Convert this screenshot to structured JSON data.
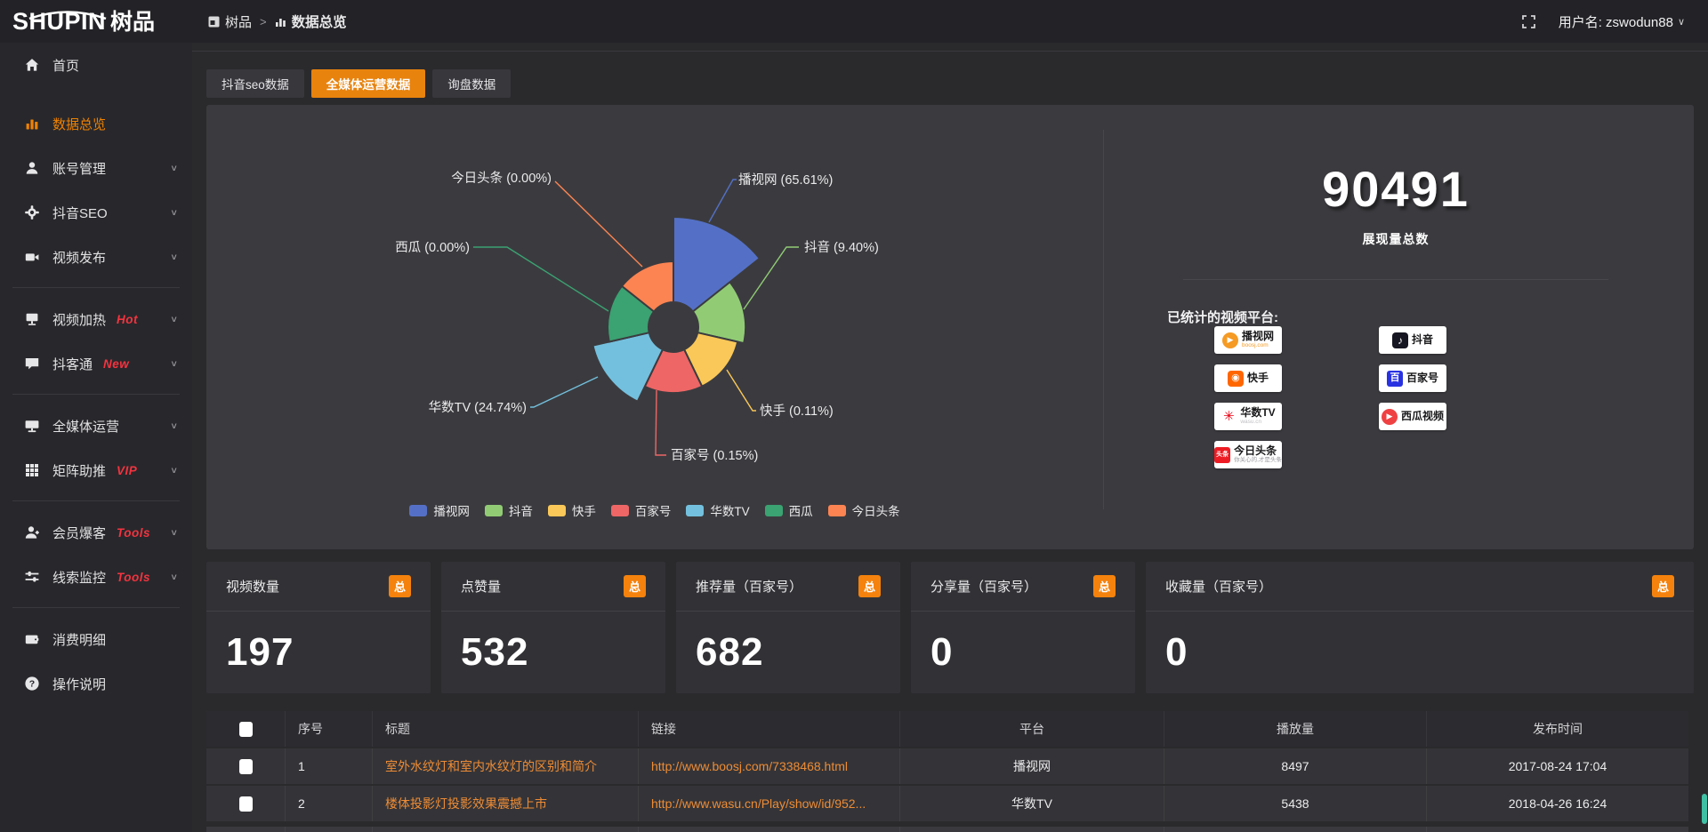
{
  "topbar": {
    "logo_en": "SHUPIN",
    "logo_cn": "树品",
    "breadcrumb": {
      "items": [
        {
          "label": "树品"
        },
        {
          "label": "数据总览"
        }
      ],
      "separator": ">"
    },
    "username": "用户名: zswodun88"
  },
  "sidebar": {
    "items": [
      {
        "label": "首页",
        "icon": "home-icon",
        "chevron": false,
        "active": false,
        "badge": "",
        "divider_after": false
      },
      {
        "label": "数据总览",
        "icon": "bar-chart-icon",
        "chevron": false,
        "active": true,
        "badge": "",
        "divider_after": false
      },
      {
        "label": "账号管理",
        "icon": "user-icon",
        "chevron": true,
        "active": false,
        "badge": "",
        "divider_after": false
      },
      {
        "label": "抖音SEO",
        "icon": "gear-icon",
        "chevron": true,
        "active": false,
        "badge": "",
        "divider_after": false
      },
      {
        "label": "视频发布",
        "icon": "video-camera-icon",
        "chevron": true,
        "active": false,
        "badge": "",
        "divider_after": true
      },
      {
        "label": "视频加热",
        "icon": "screen-heat-icon",
        "chevron": true,
        "active": false,
        "badge": "Hot",
        "divider_after": false
      },
      {
        "label": "抖客通",
        "icon": "chat-icon",
        "chevron": true,
        "active": false,
        "badge": "New",
        "divider_after": true
      },
      {
        "label": "全媒体运营",
        "icon": "monitor-icon",
        "chevron": true,
        "active": false,
        "badge": "",
        "divider_after": false
      },
      {
        "label": "矩阵助推",
        "icon": "grid-icon",
        "chevron": true,
        "active": false,
        "badge": "VIP",
        "divider_after": true
      },
      {
        "label": "会员爆客",
        "icon": "member-icon",
        "chevron": true,
        "active": false,
        "badge": "Tools",
        "divider_after": false
      },
      {
        "label": "线索监控",
        "icon": "sliders-icon",
        "chevron": true,
        "active": false,
        "badge": "Tools",
        "divider_after": true
      },
      {
        "label": "消费明细",
        "icon": "wallet-icon",
        "chevron": false,
        "active": false,
        "badge": "",
        "divider_after": false
      },
      {
        "label": "操作说明",
        "icon": "question-icon",
        "chevron": false,
        "active": false,
        "badge": "",
        "divider_after": false
      }
    ]
  },
  "tabs": [
    {
      "label": "抖音seo数据",
      "active": false
    },
    {
      "label": "全媒体运营数据",
      "active": true
    },
    {
      "label": "询盘数据",
      "active": false
    }
  ],
  "chart_data": {
    "type": "pie",
    "subtype": "nightingale-rose",
    "unit": "percent",
    "items": [
      {
        "name": "播视网",
        "value": 65.61,
        "label": "播视网 (65.61%)",
        "color": "#5470c6"
      },
      {
        "name": "抖音",
        "value": 9.4,
        "label": "抖音 (9.40%)",
        "color": "#91cc75"
      },
      {
        "name": "快手",
        "value": 0.11,
        "label": "快手 (0.11%)",
        "color": "#fac858"
      },
      {
        "name": "百家号",
        "value": 0.15,
        "label": "百家号 (0.15%)",
        "color": "#ee6666"
      },
      {
        "name": "华数TV",
        "value": 24.74,
        "label": "华数TV (24.74%)",
        "color": "#73c0de"
      },
      {
        "name": "西瓜",
        "value": 0.0,
        "label": "西瓜 (0.00%)",
        "color": "#3ba272"
      },
      {
        "name": "今日头条",
        "value": 0.0,
        "label": "今日头条 (0.00%)",
        "color": "#fc8452"
      }
    ],
    "legend": [
      "播视网",
      "抖音",
      "快手",
      "百家号",
      "华数TV",
      "西瓜",
      "今日头条"
    ],
    "legend_position": "bottom"
  },
  "summary": {
    "total_value": "90491",
    "total_label": "展现量总数",
    "platforms_title": "已统计的视频平台:",
    "platforms": [
      {
        "name": "播视网",
        "sub": "boosj.com",
        "icon": "boosj-icon",
        "col": 0,
        "row": 0
      },
      {
        "name": "抖音",
        "sub": "",
        "icon": "douyin-icon",
        "col": 1,
        "row": 0
      },
      {
        "name": "快手",
        "sub": "",
        "icon": "kuaishou-icon",
        "col": 0,
        "row": 1
      },
      {
        "name": "百家号",
        "sub": "",
        "icon": "baijiahao-icon",
        "col": 1,
        "row": 1
      },
      {
        "name": "华数TV",
        "sub": "wasu.cn",
        "icon": "wasu-icon",
        "col": 0,
        "row": 2
      },
      {
        "name": "西瓜视频",
        "sub": "",
        "icon": "xigua-icon",
        "col": 1,
        "row": 2
      },
      {
        "name": "今日头条",
        "sub": "你关心的,才是头条",
        "icon": "toutiao-icon",
        "col": 0,
        "row": 3
      }
    ]
  },
  "stat_cards": [
    {
      "title": "视频数量",
      "badge": "总",
      "value": "197"
    },
    {
      "title": "点赞量",
      "badge": "总",
      "value": "532"
    },
    {
      "title": "推荐量（百家号）",
      "badge": "总",
      "value": "682"
    },
    {
      "title": "分享量（百家号）",
      "badge": "总",
      "value": "0"
    },
    {
      "title": "收藏量（百家号）",
      "badge": "总",
      "value": "0"
    }
  ],
  "table": {
    "headers": [
      "序号",
      "标题",
      "链接",
      "平台",
      "播放量",
      "发布时间"
    ],
    "rows": [
      {
        "index": "1",
        "title": "室外水纹灯和室内水纹灯的区别和简介",
        "link": "http://www.boosj.com/7338468.html",
        "platform": "播视网",
        "plays": "8497",
        "time": "2017-08-24 17:04"
      },
      {
        "index": "2",
        "title": "楼体投影灯投影效果震撼上市",
        "link": "http://www.wasu.cn/Play/show/id/952...",
        "platform": "华数TV",
        "plays": "5438",
        "time": "2018-04-26 16:24"
      }
    ]
  }
}
